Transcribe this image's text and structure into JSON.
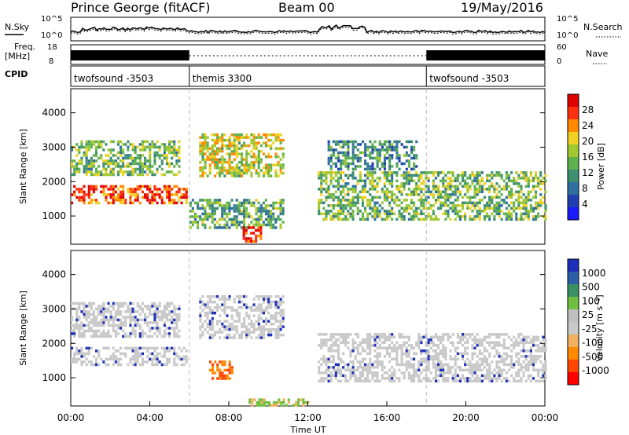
{
  "header": {
    "station": "Prince George (fitACF)",
    "beam": "Beam 00",
    "date": "19/May/2016"
  },
  "side_labels": {
    "nsky": "N.Sky",
    "nsearch": "N.Search",
    "freq_line1": "Freq.",
    "freq_line2": "[MHz]",
    "nave": "Nave",
    "cpid": "CPID"
  },
  "noise_axis": {
    "left_top": "10^5",
    "left_bottom": "10^0",
    "right_top": "10^5",
    "right_bottom": "10^0"
  },
  "freq_axis": {
    "left_top": "18",
    "left_bottom": "8",
    "right_top": "60",
    "right_bottom": "0"
  },
  "cpid_segments": [
    {
      "label": "twofsound -3503",
      "start_hour": 0,
      "end_hour": 6
    },
    {
      "label": "themis 3300",
      "start_hour": 6,
      "end_hour": 18
    },
    {
      "label": "twofsound -3503",
      "start_hour": 18,
      "end_hour": 24
    }
  ],
  "colors": {
    "power": [
      "#1a1aff",
      "#1f3fb0",
      "#2f6f9f",
      "#3d8f6f",
      "#5fb04f",
      "#a0c830",
      "#f0d020",
      "#ff8a00",
      "#ff3010",
      "#e00000"
    ],
    "velocity": [
      "#ff0000",
      "#ff4500",
      "#ff8a00",
      "#f0b060",
      "#c8c8c8",
      "#c0c0c0",
      "#70c040",
      "#3a9060",
      "#2c5fa8",
      "#1b2fb8"
    ]
  },
  "chart_data": [
    {
      "type": "heatmap",
      "title": "Power",
      "xlabel": "",
      "ylabel": "Slant Range [km]",
      "xlim": [
        0,
        24
      ],
      "ylim": [
        180,
        4700
      ],
      "yticks": [
        "1000",
        "2000",
        "3000",
        "4000"
      ],
      "colorbar": {
        "label": "Power [dB]",
        "ticks": [
          "4",
          "8",
          "12",
          "16",
          "20",
          "24",
          "28"
        ],
        "range": [
          0,
          30
        ]
      },
      "echo_regions": [
        {
          "hours": [
            0.0,
            5.8
          ],
          "range_km": [
            1400,
            1900
          ],
          "value": 26
        },
        {
          "hours": [
            0.0,
            5.5
          ],
          "range_km": [
            2200,
            3200
          ],
          "value": 14
        },
        {
          "hours": [
            6.0,
            10.8
          ],
          "range_km": [
            700,
            1500
          ],
          "value": 12
        },
        {
          "hours": [
            6.5,
            10.8
          ],
          "range_km": [
            2200,
            3400
          ],
          "value": 18
        },
        {
          "hours": [
            8.7,
            9.6
          ],
          "range_km": [
            250,
            700
          ],
          "value": 28
        },
        {
          "hours": [
            12.5,
            24.0
          ],
          "range_km": [
            900,
            2300
          ],
          "value": 14
        },
        {
          "hours": [
            13.0,
            17.5
          ],
          "range_km": [
            2400,
            3200
          ],
          "value": 10
        }
      ]
    },
    {
      "type": "heatmap",
      "title": "Velocity",
      "xlabel": "Time UT",
      "ylabel": "Slant Range [km]",
      "xlim": [
        0,
        24
      ],
      "ylim": [
        180,
        4700
      ],
      "xticks": [
        "00:00",
        "04:00",
        "08:00",
        "12:00",
        "16:00",
        "20:00",
        "00:00"
      ],
      "yticks": [
        "1000",
        "2000",
        "3000",
        "4000"
      ],
      "colorbar": {
        "label": "Velocity [m s⁻¹]",
        "ticks": [
          "1000",
          "500",
          "100",
          "25",
          "-25",
          "-100",
          "-500",
          "-1000"
        ]
      },
      "echo_regions": [
        {
          "hours": [
            0.0,
            5.8
          ],
          "range_km": [
            1400,
            1900
          ],
          "value": 0
        },
        {
          "hours": [
            0.0,
            5.5
          ],
          "range_km": [
            2200,
            3200
          ],
          "value": 0
        },
        {
          "hours": [
            6.5,
            10.8
          ],
          "range_km": [
            2200,
            3400
          ],
          "value": 0
        },
        {
          "hours": [
            7.0,
            8.2
          ],
          "range_km": [
            950,
            1500
          ],
          "value": -400
        },
        {
          "hours": [
            12.5,
            24.0
          ],
          "range_km": [
            900,
            2300
          ],
          "value": 0
        },
        {
          "hours": [
            9.0,
            12.0
          ],
          "range_km": [
            200,
            400
          ],
          "value": 150
        }
      ]
    }
  ]
}
